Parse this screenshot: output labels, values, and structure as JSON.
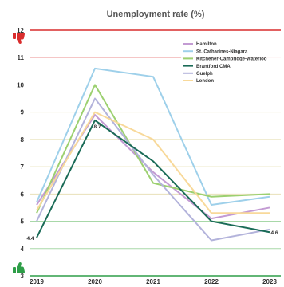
{
  "chart_data": {
    "type": "line",
    "title": "Unemployment rate (%)",
    "xlabel": "",
    "ylabel": "",
    "x": [
      "2019",
      "2020",
      "2021",
      "2022",
      "2023"
    ],
    "ylim": [
      3,
      12
    ],
    "yticks": [
      3,
      4,
      5,
      6,
      7,
      8,
      9,
      10,
      11,
      12
    ],
    "grid": true,
    "legend_position": "top-right",
    "series": [
      {
        "name": "Hamilton",
        "color": "#c39bd3",
        "values": [
          5.6,
          8.9,
          6.8,
          5.1,
          5.5
        ]
      },
      {
        "name": "St. Catharines-Niagara",
        "color": "#9ed0ea",
        "values": [
          5.7,
          10.6,
          10.3,
          5.6,
          5.9
        ]
      },
      {
        "name": "Kitchener-Cambridge-Waterloo",
        "color": "#9cd070",
        "values": [
          5.3,
          10.0,
          6.4,
          5.9,
          6.0
        ]
      },
      {
        "name": "Brantford CMA",
        "color": "#1a6b57",
        "values": [
          4.4,
          8.7,
          7.2,
          5.0,
          4.6
        ]
      },
      {
        "name": "Guelph",
        "color": "#b3b3db",
        "values": [
          5.0,
          9.5,
          6.7,
          4.3,
          4.7
        ]
      },
      {
        "name": "London",
        "color": "#f8d99a",
        "values": [
          5.4,
          9.0,
          8.0,
          5.3,
          5.3
        ]
      }
    ],
    "data_labels": [
      {
        "series": "Brantford CMA",
        "x": "2019",
        "text": "4.4"
      },
      {
        "series": "Brantford CMA",
        "x": "2020",
        "text": "8.7"
      },
      {
        "series": "Brantford CMA",
        "x": "2023",
        "text": "4.6"
      }
    ],
    "colors": {
      "good_band": "#2e9e48",
      "bad_band": "#d92d2d",
      "grid_upper": "#f2b3b3",
      "grid_mid": "#e8e0b8",
      "grid_lower": "#a8d8a8"
    },
    "icons": {
      "top": "thumbs-down-icon",
      "bottom": "thumbs-up-icon"
    }
  }
}
